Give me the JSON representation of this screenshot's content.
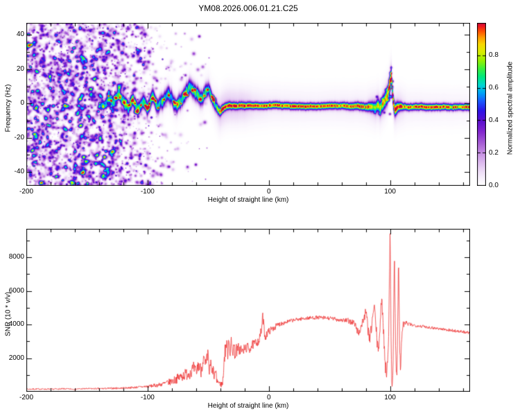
{
  "title": "YM08.2026.006.01.21.C25",
  "chart_data": [
    {
      "type": "heatmap",
      "title": "",
      "xlabel": "Height of straight line (km)",
      "ylabel": "Frequency (Hz)",
      "xlim": [
        -200,
        166
      ],
      "ylim": [
        -48,
        47
      ],
      "xticks": [
        -200,
        -100,
        0,
        100
      ],
      "yticks": [
        -40,
        -20,
        0,
        20,
        40
      ],
      "xminor": 20,
      "yminor": 10,
      "seed": 1337,
      "colorbar": {
        "label": "Normalized spectral amplitude",
        "ticks": [
          0,
          0.2,
          0.4,
          0.6,
          0.8
        ],
        "stops": [
          {
            "t": 0.0,
            "c": "#ffffff"
          },
          {
            "t": 0.04,
            "c": "#f8f2fc"
          },
          {
            "t": 0.1,
            "c": "#ead5f5"
          },
          {
            "t": 0.18,
            "c": "#cf9fe8"
          },
          {
            "t": 0.26,
            "c": "#a85fd6"
          },
          {
            "t": 0.33,
            "c": "#8428cf"
          },
          {
            "t": 0.4,
            "c": "#5a0fd0"
          },
          {
            "t": 0.46,
            "c": "#2e14e8"
          },
          {
            "t": 0.52,
            "c": "#1b5bff"
          },
          {
            "t": 0.57,
            "c": "#00a4f8"
          },
          {
            "t": 0.62,
            "c": "#00d8d0"
          },
          {
            "t": 0.67,
            "c": "#00e87e"
          },
          {
            "t": 0.72,
            "c": "#3cf03c"
          },
          {
            "t": 0.77,
            "c": "#96f000"
          },
          {
            "t": 0.82,
            "c": "#d8ee00"
          },
          {
            "t": 0.87,
            "c": "#f8d800"
          },
          {
            "t": 0.91,
            "c": "#ffa000"
          },
          {
            "t": 0.95,
            "c": "#ff5000"
          },
          {
            "t": 0.98,
            "c": "#f01820"
          },
          {
            "t": 1.0,
            "c": "#cc0a3c"
          }
        ]
      },
      "noise": {
        "count": 3200,
        "x_max": -48,
        "density": [
          [
            -200,
            0.93
          ],
          [
            -140,
            0.93
          ],
          [
            -128,
            0.8
          ],
          [
            -115,
            0.55
          ],
          [
            -105,
            0.35
          ],
          [
            -95,
            0.18
          ],
          [
            -85,
            0.1
          ],
          [
            -75,
            0.06
          ],
          [
            -65,
            0.04
          ],
          [
            -55,
            0.02
          ],
          [
            -48,
            0.012
          ]
        ]
      },
      "trace": [
        [
          -140,
          2
        ],
        [
          -136,
          -2
        ],
        [
          -132,
          4
        ],
        [
          -128,
          0
        ],
        [
          -124,
          5
        ],
        [
          -120,
          1
        ],
        [
          -116,
          -3
        ],
        [
          -112,
          3
        ],
        [
          -108,
          -4
        ],
        [
          -104,
          2
        ],
        [
          -100,
          -3
        ],
        [
          -96,
          4
        ],
        [
          -92,
          -2
        ],
        [
          -88,
          1
        ],
        [
          -84,
          6
        ],
        [
          -80,
          3
        ],
        [
          -76,
          -2
        ],
        [
          -72,
          2
        ],
        [
          -68,
          6
        ],
        [
          -64,
          9
        ],
        [
          -60,
          6
        ],
        [
          -56,
          3
        ],
        [
          -52,
          7
        ],
        [
          -50,
          9
        ],
        [
          -48,
          6
        ],
        [
          -46,
          2
        ],
        [
          -44,
          -1
        ],
        [
          -42,
          -4
        ],
        [
          -40,
          -5
        ],
        [
          -38,
          -3
        ],
        [
          -36,
          -2
        ],
        [
          -34,
          -1.5
        ],
        [
          -30,
          -1.5
        ],
        [
          -20,
          -1.5
        ],
        [
          -10,
          -1.3
        ],
        [
          0,
          -1.2
        ],
        [
          20,
          -1.4
        ],
        [
          40,
          -1.5
        ],
        [
          60,
          -1.5
        ],
        [
          80,
          -1.8
        ],
        [
          85,
          -2
        ],
        [
          88,
          -2.5
        ],
        [
          90,
          -1
        ],
        [
          92,
          -3
        ],
        [
          94,
          0
        ],
        [
          96,
          2
        ],
        [
          98,
          5
        ],
        [
          100,
          12
        ],
        [
          101,
          16
        ],
        [
          102,
          6
        ],
        [
          103,
          -1
        ],
        [
          104,
          -4
        ],
        [
          106,
          -2.5
        ],
        [
          108,
          -2
        ],
        [
          115,
          -2
        ],
        [
          130,
          -2
        ],
        [
          150,
          -2
        ],
        [
          166,
          -2
        ]
      ],
      "peak": [
        [
          -142,
          0.4
        ],
        [
          -120,
          0.55
        ],
        [
          -100,
          0.6
        ],
        [
          -80,
          0.62
        ],
        [
          -60,
          0.65
        ],
        [
          -52,
          0.6
        ],
        [
          -46,
          0.55
        ],
        [
          -42,
          0.7
        ],
        [
          -38,
          0.95
        ],
        [
          -34,
          1.0
        ],
        [
          -28,
          0.92
        ],
        [
          -20,
          0.9
        ],
        [
          -10,
          0.95
        ],
        [
          0,
          0.92
        ],
        [
          20,
          0.95
        ],
        [
          40,
          0.97
        ],
        [
          60,
          0.93
        ],
        [
          80,
          0.9
        ],
        [
          86,
          0.75
        ],
        [
          90,
          0.7
        ],
        [
          94,
          0.72
        ],
        [
          98,
          0.75
        ],
        [
          102,
          0.8
        ],
        [
          106,
          0.85
        ],
        [
          110,
          0.95
        ],
        [
          130,
          0.93
        ],
        [
          150,
          0.9
        ],
        [
          166,
          0.9
        ]
      ],
      "sigma": [
        [
          -142,
          2.6
        ],
        [
          -100,
          2.8
        ],
        [
          -60,
          3.0
        ],
        [
          -48,
          2.6
        ],
        [
          -42,
          1.8
        ],
        [
          -38,
          1.4
        ],
        [
          -30,
          1.3
        ],
        [
          0,
          1.3
        ],
        [
          60,
          1.3
        ],
        [
          80,
          1.5
        ],
        [
          88,
          2.2
        ],
        [
          94,
          2.8
        ],
        [
          100,
          3.2
        ],
        [
          104,
          2.4
        ],
        [
          108,
          1.6
        ],
        [
          112,
          1.3
        ],
        [
          166,
          1.3
        ]
      ],
      "halo": [
        [
          -142,
          0.03
        ],
        [
          -60,
          0.04
        ],
        [
          -46,
          0.06
        ],
        [
          -40,
          0.14
        ],
        [
          -30,
          0.13
        ],
        [
          -20,
          0.12
        ],
        [
          -12,
          0.08
        ],
        [
          0,
          0.06
        ],
        [
          40,
          0.05
        ],
        [
          80,
          0.06
        ],
        [
          88,
          0.11
        ],
        [
          100,
          0.13
        ],
        [
          108,
          0.1
        ],
        [
          114,
          0.05
        ],
        [
          166,
          0.04
        ]
      ],
      "spike_blobs": [
        [
          99,
          9,
          2.5,
          0.45
        ],
        [
          100,
          14,
          2.5,
          0.5
        ],
        [
          100.5,
          18,
          2,
          0.4
        ],
        [
          101,
          21,
          1.8,
          0.3
        ],
        [
          100,
          4,
          2.5,
          0.55
        ],
        [
          101.5,
          10,
          2,
          0.4
        ],
        [
          98.5,
          2,
          2,
          0.5
        ],
        [
          102,
          13,
          1.8,
          0.3
        ],
        [
          99.5,
          -6,
          2,
          0.35
        ],
        [
          89,
          4,
          1.8,
          0.35
        ],
        [
          91,
          -6,
          1.8,
          0.3
        ],
        [
          93,
          3,
          1.8,
          0.3
        ],
        [
          95,
          -5,
          1.6,
          0.3
        ],
        [
          87,
          -5,
          1.5,
          0.25
        ],
        [
          96,
          8,
          1.8,
          0.3
        ]
      ]
    },
    {
      "type": "line",
      "title": "",
      "xlabel": "Height of straight line (km)",
      "ylabel": "SNR (10 * v/v)",
      "xlim": [
        -200,
        166
      ],
      "ylim": [
        0,
        9700
      ],
      "xticks": [
        -200,
        -100,
        0,
        100
      ],
      "yticks": [
        2000,
        4000,
        6000,
        8000
      ],
      "xminor": 20,
      "yminor": 1000,
      "seed": 7,
      "color": "#ee3333",
      "points": [
        [
          -200,
          150
        ],
        [
          -190,
          160
        ],
        [
          -180,
          150
        ],
        [
          -170,
          170
        ],
        [
          -160,
          160
        ],
        [
          -150,
          180
        ],
        [
          -140,
          180
        ],
        [
          -130,
          200
        ],
        [
          -120,
          220
        ],
        [
          -110,
          260
        ],
        [
          -100,
          320
        ],
        [
          -95,
          360
        ],
        [
          -90,
          420
        ],
        [
          -85,
          500
        ],
        [
          -80,
          620
        ],
        [
          -75,
          800
        ],
        [
          -70,
          1000
        ],
        [
          -65,
          1150
        ],
        [
          -62,
          1400
        ],
        [
          -60,
          1100
        ],
        [
          -58,
          1650
        ],
        [
          -56,
          1250
        ],
        [
          -54,
          2000
        ],
        [
          -52,
          1500
        ],
        [
          -50,
          2300
        ],
        [
          -49,
          1000
        ],
        [
          -48,
          1800
        ],
        [
          -47,
          950
        ],
        [
          -46,
          1400
        ],
        [
          -45,
          800
        ],
        [
          -44,
          1250
        ],
        [
          -43,
          700
        ],
        [
          -42,
          620
        ],
        [
          -41,
          520
        ],
        [
          -40,
          460
        ],
        [
          -39,
          430
        ],
        [
          -38,
          520
        ],
        [
          -37,
          1800
        ],
        [
          -36,
          2450
        ],
        [
          -35,
          2950
        ],
        [
          -34,
          2250
        ],
        [
          -33,
          3300
        ],
        [
          -32,
          2450
        ],
        [
          -31,
          2850
        ],
        [
          -30,
          2350
        ],
        [
          -29,
          2750
        ],
        [
          -28,
          2250
        ],
        [
          -27,
          2550
        ],
        [
          -26,
          2350
        ],
        [
          -25,
          2650
        ],
        [
          -24,
          2450
        ],
        [
          -23,
          2550
        ],
        [
          -22,
          2350
        ],
        [
          -21,
          2450
        ],
        [
          -20,
          2550
        ],
        [
          -18,
          2650
        ],
        [
          -16,
          2550
        ],
        [
          -14,
          2750
        ],
        [
          -12,
          2850
        ],
        [
          -10,
          2950
        ],
        [
          -8,
          3050
        ],
        [
          -6,
          3700
        ],
        [
          -5,
          4500
        ],
        [
          -4,
          3800
        ],
        [
          -3,
          3250
        ],
        [
          -2,
          3400
        ],
        [
          -1,
          3500
        ],
        [
          0,
          3600
        ],
        [
          2,
          3700
        ],
        [
          4,
          3800
        ],
        [
          6,
          3900
        ],
        [
          8,
          4000
        ],
        [
          10,
          4060
        ],
        [
          15,
          4160
        ],
        [
          20,
          4260
        ],
        [
          25,
          4320
        ],
        [
          30,
          4370
        ],
        [
          35,
          4400
        ],
        [
          40,
          4420
        ],
        [
          45,
          4400
        ],
        [
          50,
          4370
        ],
        [
          55,
          4320
        ],
        [
          60,
          4270
        ],
        [
          65,
          4220
        ],
        [
          70,
          4120
        ],
        [
          72,
          3850
        ],
        [
          74,
          3450
        ],
        [
          76,
          3850
        ],
        [
          78,
          4300
        ],
        [
          80,
          4700
        ],
        [
          81,
          4250
        ],
        [
          82,
          3650
        ],
        [
          83,
          3050
        ],
        [
          84,
          3450
        ],
        [
          85,
          4050
        ],
        [
          86,
          4650
        ],
        [
          87,
          5050
        ],
        [
          88,
          4250
        ],
        [
          89,
          3250
        ],
        [
          90,
          2450
        ],
        [
          91,
          3050
        ],
        [
          92,
          4250
        ],
        [
          93,
          5450
        ],
        [
          94,
          4650
        ],
        [
          95,
          3050
        ],
        [
          96,
          1650
        ],
        [
          97,
          1050
        ],
        [
          98,
          2050
        ],
        [
          99,
          4050
        ],
        [
          100,
          9300
        ],
        [
          100.5,
          6000
        ],
        [
          101,
          2000
        ],
        [
          101.5,
          850
        ],
        [
          102,
          520
        ],
        [
          102.5,
          2000
        ],
        [
          103,
          5000
        ],
        [
          103.5,
          8250
        ],
        [
          104,
          6000
        ],
        [
          104.5,
          3000
        ],
        [
          105,
          1250
        ],
        [
          105.5,
          650
        ],
        [
          106,
          2500
        ],
        [
          106.5,
          5500
        ],
        [
          107,
          7800
        ],
        [
          107.5,
          5000
        ],
        [
          108,
          2500
        ],
        [
          108.5,
          1050
        ],
        [
          109,
          2050
        ],
        [
          110,
          3800
        ],
        [
          112,
          4100
        ],
        [
          115,
          4020
        ],
        [
          120,
          3960
        ],
        [
          125,
          3910
        ],
        [
          130,
          3860
        ],
        [
          135,
          3810
        ],
        [
          140,
          3760
        ],
        [
          145,
          3710
        ],
        [
          150,
          3660
        ],
        [
          155,
          3610
        ],
        [
          160,
          3560
        ],
        [
          165,
          3510
        ],
        [
          166,
          3500
        ]
      ],
      "noise_amp": [
        [
          -200,
          40
        ],
        [
          -150,
          45
        ],
        [
          -130,
          55
        ],
        [
          -110,
          65
        ],
        [
          -100,
          85
        ],
        [
          -90,
          130
        ],
        [
          -80,
          220
        ],
        [
          -70,
          350
        ],
        [
          -60,
          420
        ],
        [
          -50,
          450
        ],
        [
          -45,
          300
        ],
        [
          -40,
          130
        ],
        [
          -36,
          500
        ],
        [
          -30,
          450
        ],
        [
          -25,
          360
        ],
        [
          -20,
          320
        ],
        [
          -15,
          290
        ],
        [
          -10,
          260
        ],
        [
          -5,
          320
        ],
        [
          0,
          220
        ],
        [
          10,
          140
        ],
        [
          20,
          110
        ],
        [
          40,
          110
        ],
        [
          60,
          130
        ],
        [
          70,
          210
        ],
        [
          75,
          260
        ],
        [
          80,
          320
        ],
        [
          90,
          420
        ],
        [
          95,
          420
        ],
        [
          100,
          520
        ],
        [
          105,
          520
        ],
        [
          110,
          320
        ],
        [
          115,
          110
        ],
        [
          130,
          90
        ],
        [
          150,
          90
        ],
        [
          166,
          90
        ]
      ]
    }
  ]
}
